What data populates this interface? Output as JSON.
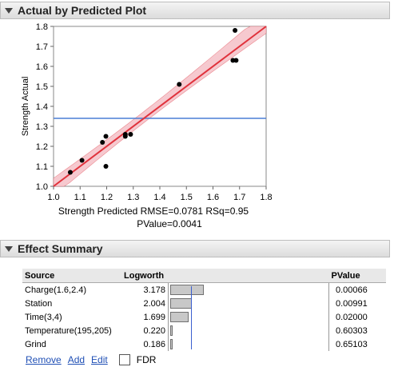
{
  "plot_panel": {
    "title": "Actual by Predicted Plot"
  },
  "chart_data": {
    "type": "scatter",
    "xlabel": "Strength Predicted",
    "ylabel": "Strength Actual",
    "xlim": [
      1.0,
      1.8
    ],
    "ylim": [
      1.0,
      1.8
    ],
    "xticks": [
      "1.0",
      "1.1",
      "1.2",
      "1.3",
      "1.4",
      "1.5",
      "1.6",
      "1.7",
      "1.8"
    ],
    "yticks": [
      "1.0",
      "1.1",
      "1.2",
      "1.3",
      "1.4",
      "1.5",
      "1.6",
      "1.7",
      "1.8"
    ],
    "points": [
      [
        1.063,
        1.07
      ],
      [
        1.107,
        1.13
      ],
      [
        1.184,
        1.22
      ],
      [
        1.197,
        1.25
      ],
      [
        1.197,
        1.1
      ],
      [
        1.27,
        1.25
      ],
      [
        1.27,
        1.26
      ],
      [
        1.29,
        1.26
      ],
      [
        1.473,
        1.51
      ],
      [
        1.675,
        1.63
      ],
      [
        1.687,
        1.63
      ],
      [
        1.683,
        1.78
      ]
    ],
    "fit_line": [
      [
        1.0,
        0.996
      ],
      [
        1.8,
        1.82
      ]
    ],
    "mean_line": 1.34,
    "colors": {
      "fit": "#e0323c",
      "band": "#f6c9cf",
      "mean": "#4a7fd6",
      "point": "#000000"
    },
    "stats": "RMSE=0.0781 RSq=0.95",
    "pvalue_text": "PValue=0.0041"
  },
  "effects_panel": {
    "title": "Effect Summary",
    "columns": {
      "source": "Source",
      "logworth": "Logworth",
      "pvalue": "PValue"
    },
    "rows": [
      {
        "source": "Charge(1.6,2.4)",
        "logworth": "3.178",
        "value": 3.178,
        "pvalue": "0.00066"
      },
      {
        "source": "Station",
        "logworth": "2.004",
        "value": 2.004,
        "pvalue": "0.00991"
      },
      {
        "source": "Time(3,4)",
        "logworth": "1.699",
        "value": 1.699,
        "pvalue": "0.02000"
      },
      {
        "source": "Temperature(195,205)",
        "logworth": "0.220",
        "value": 0.22,
        "pvalue": "0.60303"
      },
      {
        "source": "Grind",
        "logworth": "0.186",
        "value": 0.186,
        "pvalue": "0.65103"
      }
    ],
    "bar_max": 10,
    "ref_line": 2,
    "links": {
      "remove": "Remove",
      "add": "Add",
      "edit": "Edit",
      "fdr": "FDR"
    }
  }
}
